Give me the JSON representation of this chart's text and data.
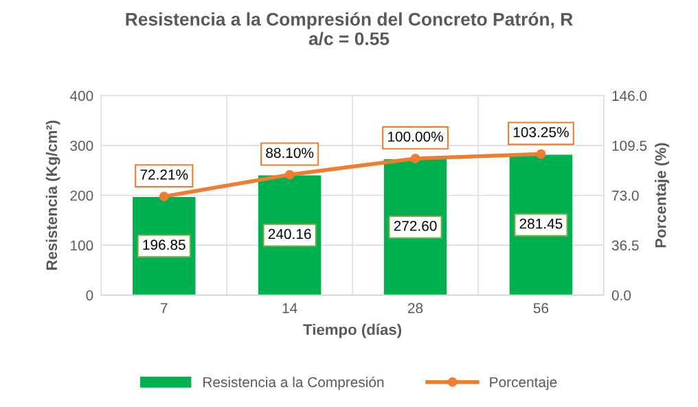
{
  "chart_data": {
    "type": "bar",
    "title": "Resistencia a la Compresión del Concreto Patrón, R\na/c = 0.55",
    "xlabel": "Tiempo (días)",
    "ylabel": "Resistencia (Kg/cm²)",
    "y2label": "Porcentaje (%)",
    "categories": [
      "7",
      "14",
      "28",
      "56"
    ],
    "series": [
      {
        "name": "Resistencia a la Compresión",
        "color": "#00b050",
        "values": [
          196.85,
          240.16,
          272.6,
          281.45
        ],
        "value_labels": [
          "196.85",
          "240.16",
          "272.60",
          "281.45"
        ]
      },
      {
        "name": "Porcentaje",
        "type": "line",
        "axis": "y2",
        "color": "#ed7d31",
        "marker": "circle",
        "values": [
          72.21,
          88.1,
          100.0,
          103.25
        ],
        "value_labels": [
          "72.21%",
          "88.10%",
          "100.00%",
          "103.25%"
        ]
      }
    ],
    "ylim": [
      0,
      400
    ],
    "yticks": [
      0,
      100,
      200,
      300,
      400
    ],
    "y2lim": [
      0,
      146
    ],
    "y2ticks": [
      {
        "value": 0,
        "label": "0.0"
      },
      {
        "value": 36.5,
        "label": "36.5"
      },
      {
        "value": 73,
        "label": "73.0"
      },
      {
        "value": 109.5,
        "label": "109.5"
      },
      {
        "value": 146,
        "label": "146.0"
      }
    ],
    "grid": true,
    "legend": "bottom"
  }
}
